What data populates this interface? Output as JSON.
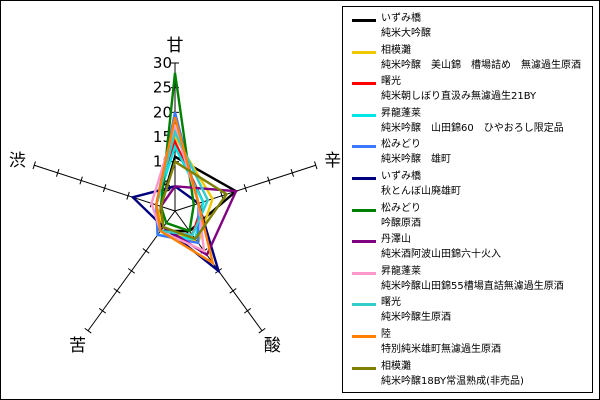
{
  "chart_data": {
    "type": "radar",
    "axes": [
      "甘",
      "辛",
      "酸",
      "苦",
      "渋"
    ],
    "rlim": [
      0,
      30
    ],
    "ticks": [
      5,
      10,
      15,
      20,
      25,
      30
    ],
    "tick_labels": [
      "5",
      "10",
      "15",
      "20",
      "25",
      "30"
    ],
    "legend_position": "right",
    "series": [
      {
        "name": "いずみ橋",
        "subname": "純米大吟醸",
        "color": "#000000",
        "values": [
          11,
          13,
          5,
          5,
          3
        ]
      },
      {
        "name": "相模灘",
        "subname": "純米吟醸　美山錦　槽場詰め　無濾過生原酒",
        "color": "#f0c800",
        "values": [
          15,
          8,
          8,
          4,
          4
        ]
      },
      {
        "name": "曙光",
        "subname": "純米朝しぼり直汲み無濾過生21BY",
        "color": "#ff0000",
        "values": [
          14,
          6,
          6,
          5,
          4
        ]
      },
      {
        "name": "昇龍蓬莱",
        "subname": "純米吟醸　山田錦60　ひやおろし限定品",
        "color": "#00e5e5",
        "values": [
          13,
          6,
          7,
          6,
          4
        ]
      },
      {
        "name": "松みどり",
        "subname": "純米吟醸　雄町",
        "color": "#3c78ff",
        "values": [
          20,
          5,
          8,
          6,
          4
        ]
      },
      {
        "name": "いずみ橋",
        "subname": "秋とんぼ山廃雄町",
        "color": "#000080",
        "values": [
          5,
          5,
          15,
          4,
          9
        ]
      },
      {
        "name": "松みどり",
        "subname": "吟醸原酒",
        "color": "#008000",
        "values": [
          28,
          4,
          5,
          3,
          3
        ]
      },
      {
        "name": "丹澤山",
        "subname": "純米酒阿波山田錦六十火入",
        "color": "#800080",
        "values": [
          5,
          13,
          11,
          4,
          3
        ]
      },
      {
        "name": "昇龍蓬莱",
        "subname": "純米吟醸山田錦55槽場直詰無濾過生原酒",
        "color": "#ff99cc",
        "values": [
          17,
          5,
          10,
          5,
          5
        ]
      },
      {
        "name": "曙光",
        "subname": "純米吟醸生原酒",
        "color": "#33cccc",
        "values": [
          16,
          7,
          6,
          5,
          4
        ]
      },
      {
        "name": "陸",
        "subname": "特別純米雄町無濾過生原酒",
        "color": "#ff8000",
        "values": [
          19,
          5,
          13,
          5,
          4
        ]
      },
      {
        "name": "相模灘",
        "subname": "純米吟醸18BY常温熟成(非売品)",
        "color": "#808000",
        "values": [
          10,
          11,
          7,
          4,
          3
        ]
      }
    ]
  }
}
